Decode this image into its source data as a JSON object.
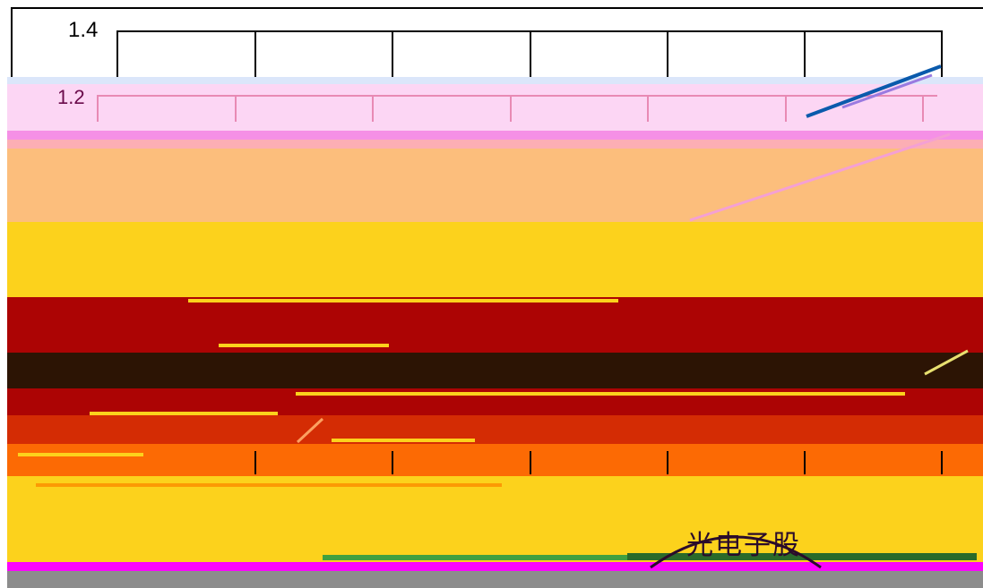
{
  "axis": {
    "upper_label": "1.4",
    "lower_label": "1.2"
  },
  "seal": {
    "text": "光电子股"
  },
  "colors": {
    "pink": "#fcd6f4",
    "peach": "#fcbe7c",
    "gold": "#fcd21c",
    "red": "#ac0404",
    "dark": "#2c1404",
    "orange": "#fc6a04",
    "magenta": "#fc04fc",
    "grey": "#8c8c8c",
    "blue": "#0a5aac"
  }
}
